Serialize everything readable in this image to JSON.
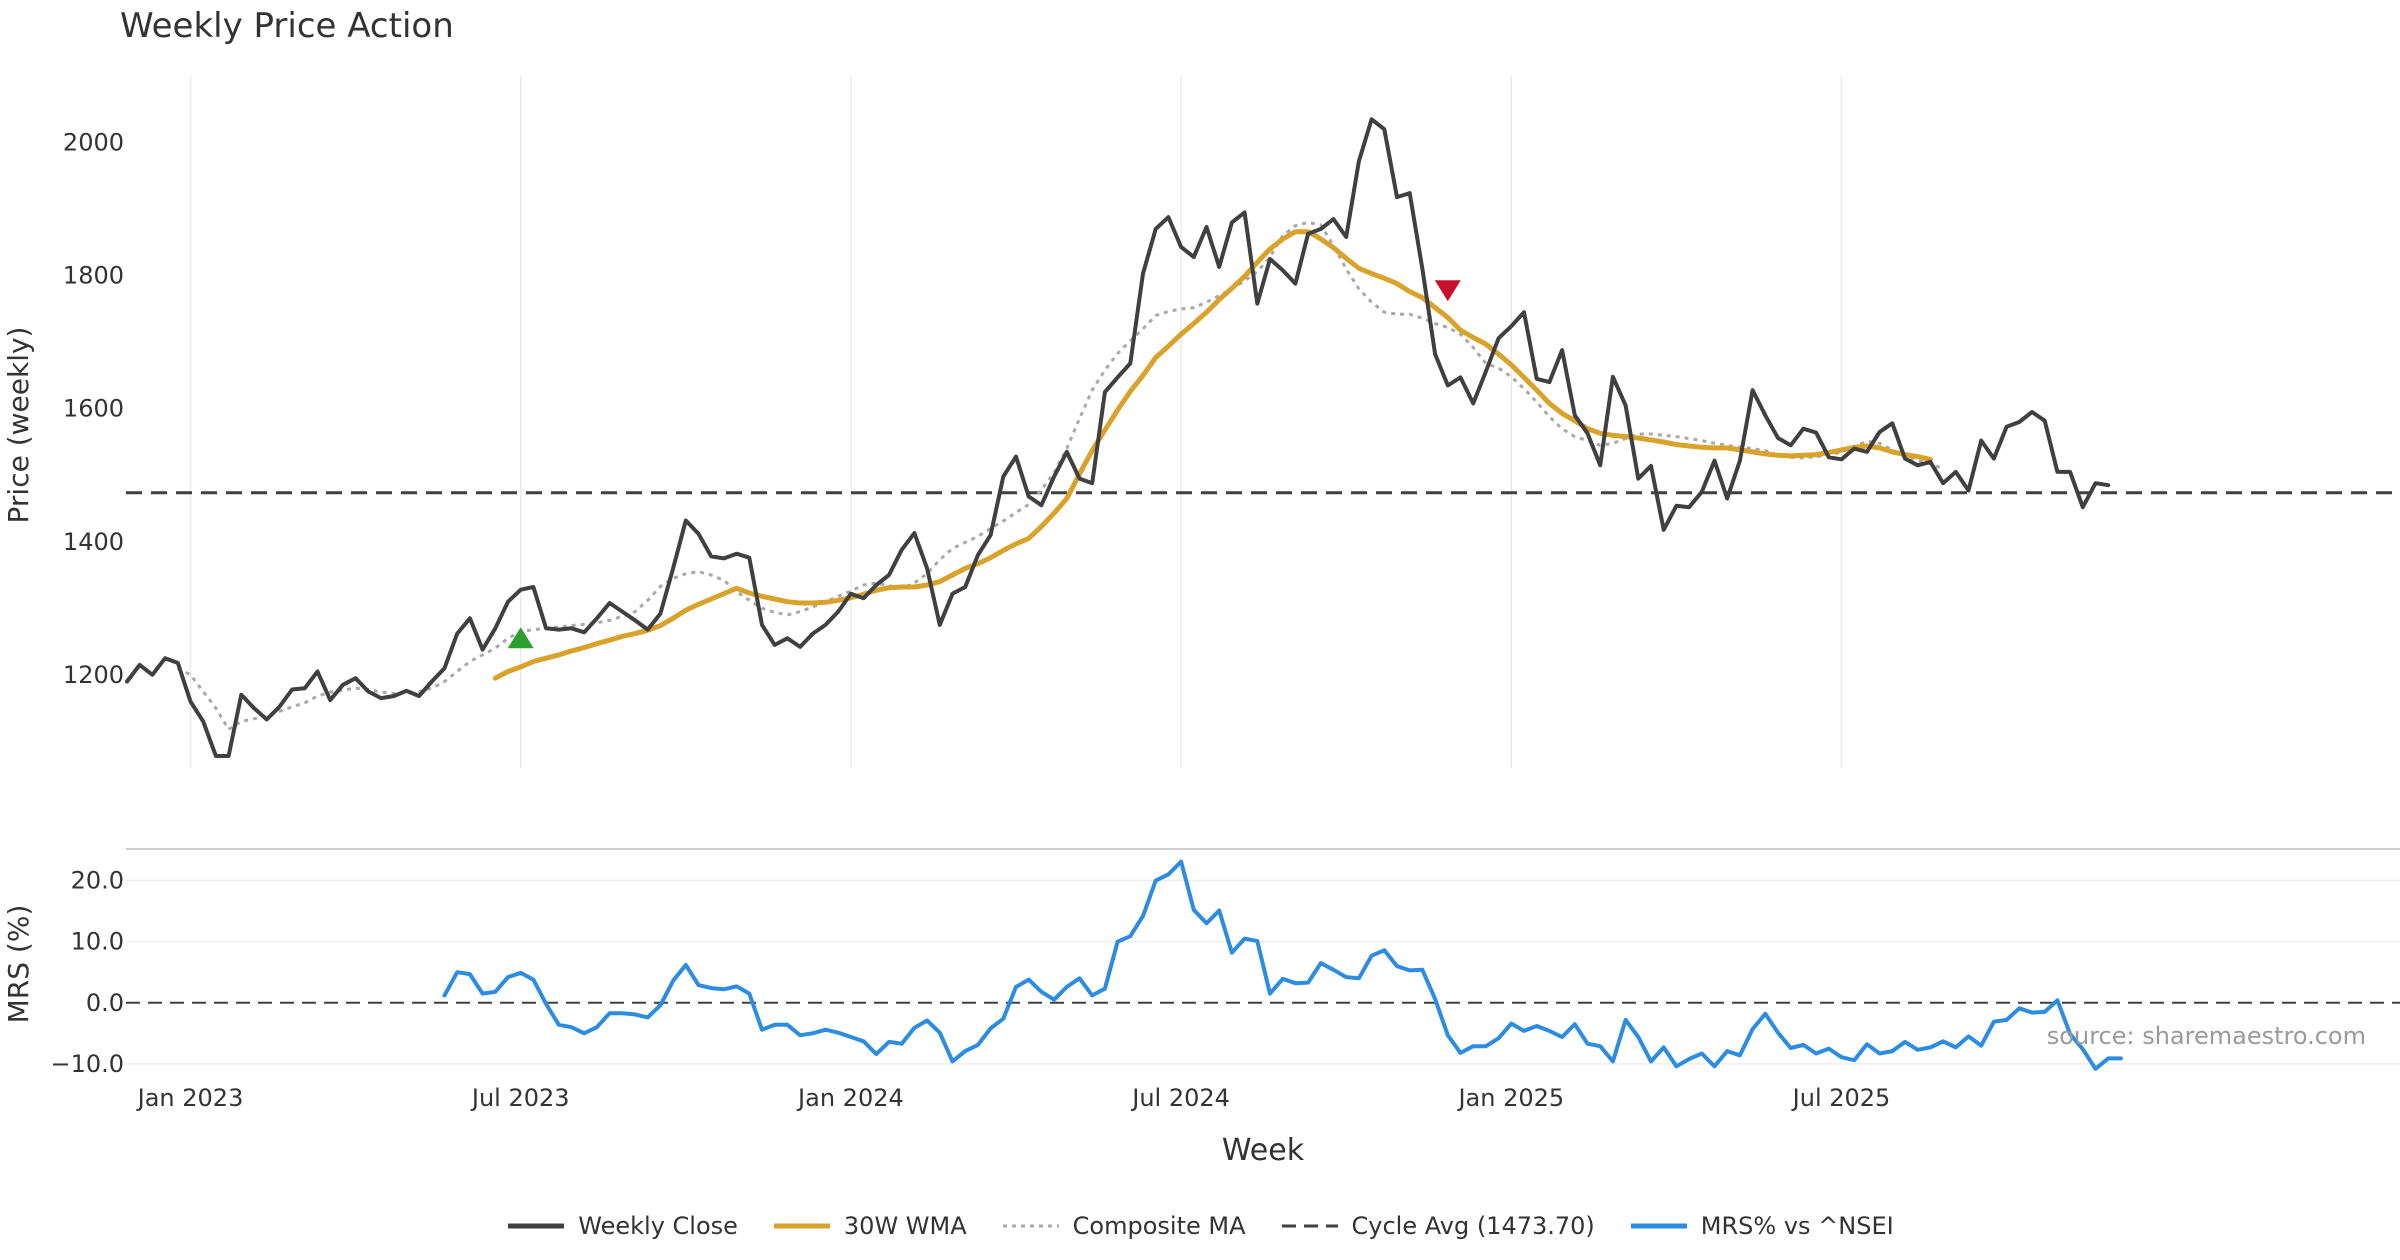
{
  "chart_data": {
    "type": "line",
    "title": "Weekly Price Action",
    "source": "source: sharemaestro.com",
    "x_axis": {
      "label": "Week",
      "ticks": [
        "Jan 2023",
        "Jul 2023",
        "Jan 2024",
        "Jul 2024",
        "Jan 2025",
        "Jul 2025"
      ],
      "tick_weeks": [
        5,
        31,
        57,
        83,
        109,
        135
      ]
    },
    "panels": [
      {
        "name": "price",
        "ylabel": "Price (weekly)",
        "ylim": [
          1060,
          2100
        ],
        "yticks": [
          1200,
          1400,
          1600,
          1800,
          2000
        ],
        "reference_line": {
          "name": "Cycle Avg (1473.70)",
          "value": 1473.7
        },
        "signals": [
          {
            "type": "buy",
            "week": 31,
            "value": 1255,
            "color": "#2ca02c"
          },
          {
            "type": "sell",
            "week": 104,
            "value": 1778,
            "color": "#c8102e"
          }
        ]
      },
      {
        "name": "mrs",
        "ylabel": "MRS (%)",
        "ylim": [
          -11,
          25
        ],
        "yticks": [
          20.0,
          10.0,
          0.0,
          -10.0
        ],
        "ytick_labels": [
          "20.0",
          "10.0",
          "0.0",
          "−10.0"
        ],
        "reference_line": {
          "value": 0.0
        }
      }
    ],
    "series": [
      {
        "name": "Weekly Close",
        "panel": "price",
        "color": "#404040",
        "style": "solid",
        "x_start": 0,
        "values": [
          1190,
          1215,
          1200,
          1225,
          1218,
          1160,
          1130,
          1078,
          1078,
          1170,
          1150,
          1133,
          1152,
          1178,
          1180,
          1205,
          1162,
          1185,
          1195,
          1175,
          1165,
          1168,
          1176,
          1168,
          1190,
          1210,
          1262,
          1285,
          1238,
          1270,
          1310,
          1328,
          1332,
          1270,
          1268,
          1270,
          1264,
          1285,
          1308,
          1295,
          1282,
          1268,
          1292,
          1360,
          1432,
          1412,
          1378,
          1375,
          1382,
          1376,
          1275,
          1245,
          1255,
          1242,
          1262,
          1275,
          1295,
          1322,
          1315,
          1335,
          1350,
          1388,
          1413,
          1360,
          1275,
          1322,
          1332,
          1380,
          1410,
          1498,
          1528,
          1468,
          1455,
          1498,
          1535,
          1495,
          1488,
          1625,
          1647,
          1668,
          1803,
          1870,
          1888,
          1843,
          1828,
          1873,
          1813,
          1880,
          1895,
          1758,
          1825,
          1808,
          1788,
          1863,
          1870,
          1885,
          1858,
          1972,
          2035,
          2020,
          1918,
          1924,
          1810,
          1682,
          1635,
          1647,
          1608,
          1656,
          1706,
          1724,
          1745,
          1645,
          1640,
          1688,
          1590,
          1563,
          1515,
          1648,
          1605,
          1495,
          1514,
          1418,
          1454,
          1452,
          1475,
          1522,
          1465,
          1522,
          1628,
          1590,
          1556,
          1545,
          1570,
          1564,
          1527,
          1524,
          1540,
          1535,
          1565,
          1578,
          1525,
          1515,
          1520,
          1488,
          1505,
          1477,
          1552,
          1525,
          1573,
          1580,
          1595,
          1582,
          1505,
          1505,
          1452,
          1488,
          1485
        ]
      },
      {
        "name": "30W WMA",
        "panel": "price",
        "color": "#d9a32b",
        "style": "solid",
        "x_start": 29,
        "values": [
          1195,
          1205,
          1212,
          1220,
          1225,
          1230,
          1236,
          1241,
          1247,
          1252,
          1258,
          1262,
          1267,
          1274,
          1285,
          1297,
          1306,
          1314,
          1322,
          1330,
          1323,
          1318,
          1314,
          1310,
          1308,
          1308,
          1309,
          1312,
          1316,
          1321,
          1327,
          1331,
          1332,
          1332,
          1335,
          1340,
          1350,
          1360,
          1367,
          1376,
          1387,
          1397,
          1405,
          1423,
          1443,
          1465,
          1502,
          1537,
          1568,
          1598,
          1626,
          1650,
          1677,
          1694,
          1712,
          1728,
          1745,
          1764,
          1781,
          1799,
          1820,
          1840,
          1855,
          1866,
          1866,
          1855,
          1842,
          1826,
          1811,
          1803,
          1796,
          1788,
          1776,
          1767,
          1752,
          1737,
          1718,
          1707,
          1697,
          1682,
          1666,
          1647,
          1628,
          1608,
          1593,
          1582,
          1570,
          1563,
          1560,
          1558,
          1556,
          1553,
          1550,
          1546,
          1544,
          1542,
          1541,
          1541,
          1538,
          1535,
          1532,
          1530,
          1529,
          1530,
          1531,
          1534,
          1538,
          1542,
          1544,
          1541,
          1535,
          1531,
          1528,
          1524
        ]
      },
      {
        "name": "Composite MA",
        "panel": "price",
        "color": "#a9a9a9",
        "style": "dotted",
        "x_start": 4,
        "values": [
          1210,
          1200,
          1175,
          1150,
          1118,
          1130,
          1134,
          1138,
          1145,
          1152,
          1158,
          1168,
          1174,
          1177,
          1180,
          1178,
          1174,
          1172,
          1173,
          1175,
          1180,
          1190,
          1205,
          1220,
          1230,
          1240,
          1255,
          1265,
          1268,
          1270,
          1272,
          1274,
          1276,
          1278,
          1282,
          1288,
          1295,
          1312,
          1333,
          1345,
          1352,
          1355,
          1350,
          1342,
          1325,
          1312,
          1300,
          1294,
          1290,
          1295,
          1302,
          1310,
          1318,
          1326,
          1335,
          1338,
          1334,
          1330,
          1338,
          1352,
          1373,
          1390,
          1399,
          1408,
          1420,
          1431,
          1444,
          1456,
          1478,
          1504,
          1540,
          1585,
          1628,
          1658,
          1683,
          1702,
          1720,
          1740,
          1746,
          1750,
          1752,
          1760,
          1770,
          1780,
          1792,
          1806,
          1828,
          1860,
          1875,
          1880,
          1876,
          1845,
          1810,
          1780,
          1760,
          1745,
          1742,
          1742,
          1736,
          1728,
          1722,
          1712,
          1692,
          1668,
          1661,
          1648,
          1630,
          1610,
          1588,
          1570,
          1558,
          1552,
          1545,
          1548,
          1555,
          1562,
          1562,
          1560,
          1558,
          1555,
          1552,
          1548,
          1545,
          1542,
          1540,
          1537,
          1530,
          1527,
          1526,
          1528,
          1530,
          1535,
          1543,
          1551,
          1548,
          1538,
          1530,
          1522,
          1517,
          1510
        ]
      },
      {
        "name": "MRS% vs ^NSEI",
        "panel": "mrs",
        "color": "#2b8ce0",
        "style": "solid",
        "x_start": 25,
        "values": [
          1.2,
          5.0,
          4.7,
          1.5,
          1.8,
          4.2,
          4.9,
          3.8,
          -0.2,
          -3.6,
          -4.0,
          -5.0,
          -4.0,
          -1.7,
          -1.7,
          -1.9,
          -2.4,
          -0.4,
          3.6,
          6.2,
          2.9,
          2.4,
          2.2,
          2.7,
          1.5,
          -4.4,
          -3.6,
          -3.6,
          -5.3,
          -5.0,
          -4.4,
          -4.9,
          -5.6,
          -6.3,
          -8.4,
          -6.4,
          -6.7,
          -4.1,
          -2.9,
          -4.9,
          -9.6,
          -7.9,
          -6.9,
          -4.2,
          -2.6,
          2.6,
          3.8,
          1.8,
          0.5,
          2.6,
          4.0,
          1.2,
          2.3,
          10.0,
          10.9,
          14.2,
          20.0,
          21.0,
          23.1,
          15.2,
          13.0,
          15.1,
          8.2,
          10.5,
          10.1,
          1.5,
          3.9,
          3.2,
          3.3,
          6.5,
          5.4,
          4.2,
          4.0,
          7.7,
          8.6,
          6.0,
          5.3,
          5.4,
          0.6,
          -5.3,
          -8.2,
          -7.1,
          -7.1,
          -5.8,
          -3.4,
          -4.6,
          -3.8,
          -4.6,
          -5.6,
          -3.5,
          -6.7,
          -7.1,
          -9.6,
          -2.8,
          -5.6,
          -9.6,
          -7.3,
          -10.4,
          -9.2,
          -8.3,
          -10.4,
          -7.9,
          -8.6,
          -4.3,
          -1.8,
          -4.9,
          -7.4,
          -6.9,
          -8.3,
          -7.5,
          -8.9,
          -9.4,
          -6.8,
          -8.3,
          -7.9,
          -6.4,
          -7.7,
          -7.3,
          -6.3,
          -7.3,
          -5.5,
          -7.0,
          -3.1,
          -2.8,
          -0.9,
          -1.6,
          -1.5,
          0.4,
          -5.1,
          -7.6,
          -10.8,
          -9.1,
          -9.1
        ]
      }
    ],
    "legend": [
      {
        "name": "Weekly Close",
        "color": "#404040",
        "style": "solid"
      },
      {
        "name": "30W WMA",
        "color": "#d9a32b",
        "style": "solid"
      },
      {
        "name": "Composite MA",
        "color": "#a9a9a9",
        "style": "dotted"
      },
      {
        "name": "Cycle Avg (1473.70)",
        "color": "#404040",
        "style": "dashed"
      },
      {
        "name": "MRS% vs ^NSEI",
        "color": "#2b8ce0",
        "style": "solid"
      }
    ]
  }
}
